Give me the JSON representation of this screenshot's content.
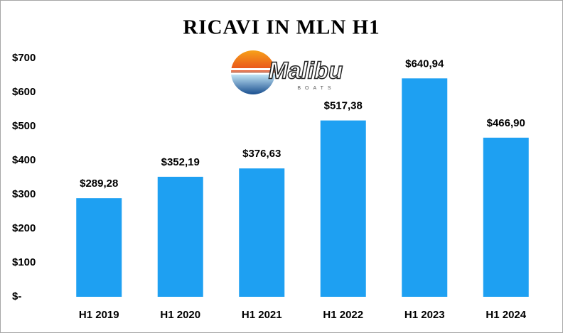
{
  "chart_data": {
    "type": "bar",
    "title": "RICAVI IN MLN H1",
    "logo": {
      "name": "Malibu",
      "subtitle": "BOATS"
    },
    "categories": [
      "H1 2019",
      "H1 2020",
      "H1 2021",
      "H1 2022",
      "H1 2023",
      "H1 2024"
    ],
    "values": [
      289.28,
      352.19,
      376.63,
      517.38,
      640.94,
      466.9
    ],
    "value_labels": [
      "$289,28",
      "$352,19",
      "$376,63",
      "$517,38",
      "$640,94",
      "$466,90"
    ],
    "color": "#1ea0f2",
    "ylim": [
      0,
      700
    ],
    "yticks": [
      {
        "value": 0,
        "label": "$-"
      },
      {
        "value": 100,
        "label": "$100"
      },
      {
        "value": 200,
        "label": "$200"
      },
      {
        "value": 300,
        "label": "$300"
      },
      {
        "value": 400,
        "label": "$400"
      },
      {
        "value": 500,
        "label": "$500"
      },
      {
        "value": 600,
        "label": "$600"
      },
      {
        "value": 700,
        "label": "$700"
      }
    ],
    "grid": false
  }
}
